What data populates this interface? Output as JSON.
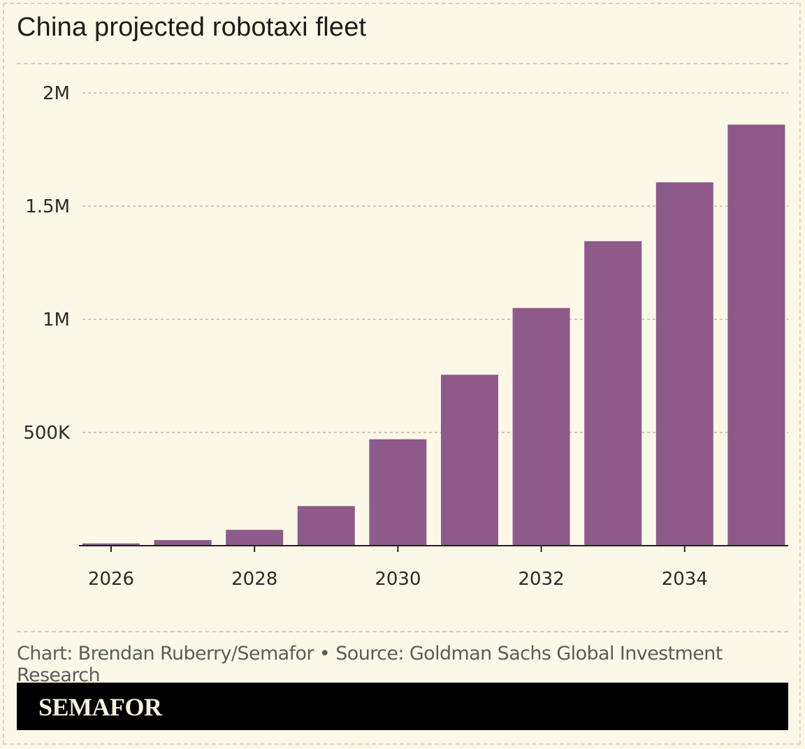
{
  "header": {
    "title": "China projected robotaxi fleet"
  },
  "footer": {
    "caption": "Chart: Brendan Ruberry/Semafor • Source: Goldman Sachs Global Investment Research",
    "brand": "SEMAFOR"
  },
  "colors": {
    "bar": "#8d5a8a",
    "background": "#fbf8e7",
    "grid": "#bdb8a3",
    "axis": "#222222"
  },
  "chart_data": {
    "type": "bar",
    "title": "China projected robotaxi fleet",
    "xlabel": "",
    "ylabel": "",
    "categories": [
      "2026",
      "2027",
      "2028",
      "2029",
      "2030",
      "2031",
      "2032",
      "2033",
      "2034",
      "2035"
    ],
    "values": [
      10000,
      25000,
      70000,
      175000,
      470000,
      755000,
      1050000,
      1345000,
      1605000,
      1860000
    ],
    "x_tick_labels": [
      "2026",
      "2028",
      "2030",
      "2032",
      "2034"
    ],
    "y_ticks": [
      {
        "value": 500000,
        "label": "500K"
      },
      {
        "value": 1000000,
        "label": "1M"
      },
      {
        "value": 1500000,
        "label": "1.5M"
      },
      {
        "value": 2000000,
        "label": "2M"
      }
    ],
    "ylim": [
      0,
      2000000
    ],
    "grid": true,
    "legend": "none"
  }
}
